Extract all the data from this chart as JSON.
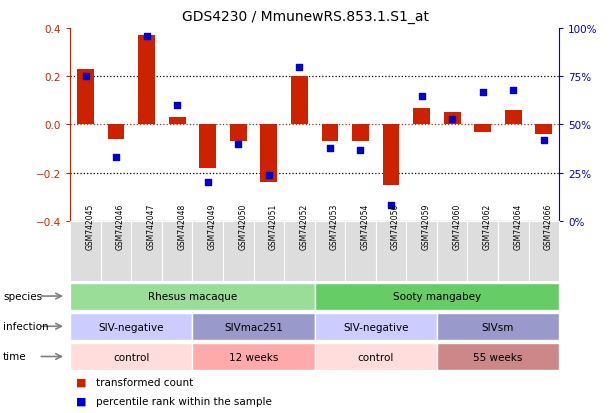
{
  "title": "GDS4230 / MmunewRS.853.1.S1_at",
  "samples": [
    "GSM742045",
    "GSM742046",
    "GSM742047",
    "GSM742048",
    "GSM742049",
    "GSM742050",
    "GSM742051",
    "GSM742052",
    "GSM742053",
    "GSM742054",
    "GSM742056",
    "GSM742059",
    "GSM742060",
    "GSM742062",
    "GSM742064",
    "GSM742066"
  ],
  "bar_values": [
    0.23,
    -0.06,
    0.37,
    0.03,
    -0.18,
    -0.07,
    -0.24,
    0.2,
    -0.07,
    -0.07,
    -0.25,
    0.07,
    0.05,
    -0.03,
    0.06,
    -0.04
  ],
  "dot_values": [
    75,
    33,
    96,
    60,
    20,
    40,
    24,
    80,
    38,
    37,
    8,
    65,
    53,
    67,
    68,
    42
  ],
  "bar_color": "#cc2200",
  "dot_color": "#0000cc",
  "ylim": [
    -0.4,
    0.4
  ],
  "y2lim": [
    0,
    100
  ],
  "yticks": [
    -0.4,
    -0.2,
    0.0,
    0.2,
    0.4
  ],
  "y2ticks": [
    0,
    25,
    50,
    75,
    100
  ],
  "y2ticklabels": [
    "0%",
    "25%",
    "50%",
    "75%",
    "100%"
  ],
  "hlines_dotted": [
    0.2,
    -0.2
  ],
  "species_labels": [
    {
      "label": "Rhesus macaque",
      "start": 0,
      "end": 8,
      "color": "#99dd99"
    },
    {
      "label": "Sooty mangabey",
      "start": 8,
      "end": 16,
      "color": "#66cc66"
    }
  ],
  "infection_labels": [
    {
      "label": "SIV-negative",
      "start": 0,
      "end": 4,
      "color": "#ccccff"
    },
    {
      "label": "SIVmac251",
      "start": 4,
      "end": 8,
      "color": "#9999cc"
    },
    {
      "label": "SIV-negative",
      "start": 8,
      "end": 12,
      "color": "#ccccff"
    },
    {
      "label": "SIVsm",
      "start": 12,
      "end": 16,
      "color": "#9999cc"
    }
  ],
  "time_labels": [
    {
      "label": "control",
      "start": 0,
      "end": 4,
      "color": "#ffdddd"
    },
    {
      "label": "12 weeks",
      "start": 4,
      "end": 8,
      "color": "#ffaaaa"
    },
    {
      "label": "control",
      "start": 8,
      "end": 12,
      "color": "#ffdddd"
    },
    {
      "label": "55 weeks",
      "start": 12,
      "end": 16,
      "color": "#cc8888"
    }
  ],
  "row_labels": [
    "species",
    "infection",
    "time"
  ],
  "legend_bar_label": "transformed count",
  "legend_dot_label": "percentile rank within the sample",
  "bg_color": "#ffffff",
  "label_bg": "#dddddd"
}
